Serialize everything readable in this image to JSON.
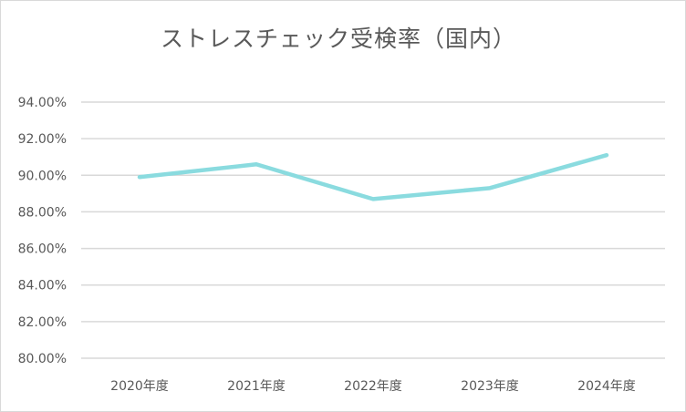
{
  "chart_data": {
    "type": "line",
    "title": "ストレスチェック受検率（国内）",
    "categories": [
      "2020年度",
      "2021年度",
      "2022年度",
      "2023年度",
      "2024年度"
    ],
    "series": [
      {
        "values": [
          89.9,
          90.6,
          88.7,
          89.3,
          91.1
        ],
        "color": "#8adbdf"
      }
    ],
    "ylim": [
      80,
      94
    ],
    "yticks": [
      80,
      82,
      84,
      86,
      88,
      90,
      92,
      94
    ],
    "ytick_labels": [
      "80.00%",
      "82.00%",
      "84.00%",
      "86.00%",
      "88.00%",
      "90.00%",
      "92.00%",
      "94.00%"
    ],
    "grid": true,
    "legend": "none"
  }
}
